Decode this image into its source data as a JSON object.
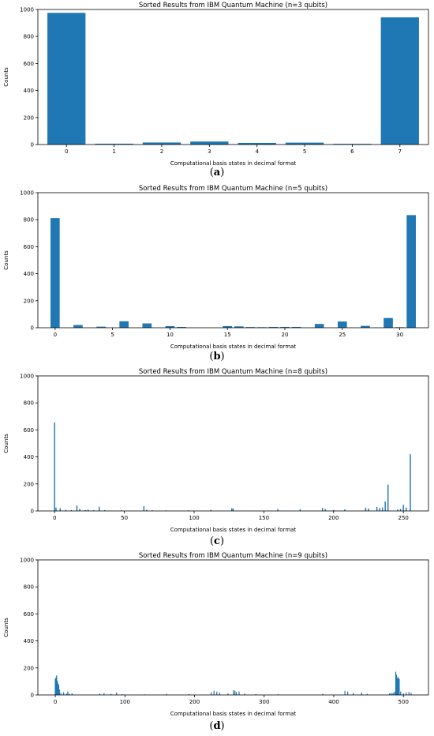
{
  "chart_data": [
    {
      "type": "bar",
      "title": "Sorted Results from IBM Quantum Machine (n=3 qubits)",
      "xlabel": "Computational basis states in decimal format",
      "ylabel": "Counts",
      "panel_label": "a",
      "color": "#1f77b4",
      "xlim": [
        -0.6,
        7.6
      ],
      "ylim": [
        0,
        1000
      ],
      "bar_width": 0.8,
      "xticks": [
        0,
        1,
        2,
        3,
        4,
        5,
        6,
        7
      ],
      "yticks": [
        0,
        200,
        400,
        600,
        800,
        1000
      ],
      "x": [
        0,
        1,
        2,
        3,
        4,
        5,
        6,
        7
      ],
      "values": [
        975,
        6,
        15,
        22,
        12,
        14,
        5,
        942
      ]
    },
    {
      "type": "bar",
      "title": "Sorted Results from IBM Quantum Machine (n=5 qubits)",
      "xlabel": "Computational basis states in decimal format",
      "ylabel": "Counts",
      "panel_label": "b",
      "color": "#1f77b4",
      "xlim": [
        -1.5,
        32.5
      ],
      "ylim": [
        0,
        1000
      ],
      "bar_width": 0.8,
      "xticks": [
        0,
        5,
        10,
        15,
        20,
        25,
        30
      ],
      "yticks": [
        0,
        200,
        400,
        600,
        800,
        1000
      ],
      "x": [
        0,
        2,
        4,
        6,
        8,
        10,
        11,
        15,
        16,
        17,
        18,
        19,
        20,
        21,
        23,
        25,
        27,
        29,
        30,
        31
      ],
      "values": [
        812,
        20,
        8,
        48,
        32,
        12,
        6,
        12,
        10,
        5,
        4,
        6,
        6,
        6,
        28,
        46,
        14,
        72,
        4,
        834
      ]
    },
    {
      "type": "bar",
      "title": "Sorted Results from IBM Quantum Machine (n=8 qubits)",
      "xlabel": "Computational basis states in decimal format",
      "ylabel": "Counts",
      "panel_label": "c",
      "color": "#1f77b4",
      "xlim": [
        -12,
        268
      ],
      "ylim": [
        0,
        1000
      ],
      "bar_width": 0.8,
      "xticks": [
        0,
        50,
        100,
        150,
        200,
        250
      ],
      "yticks": [
        0,
        200,
        400,
        600,
        800,
        1000
      ],
      "x": [
        0,
        1,
        4,
        8,
        12,
        16,
        18,
        22,
        24,
        28,
        32,
        36,
        48,
        64,
        66,
        70,
        80,
        96,
        112,
        127,
        128,
        160,
        176,
        192,
        194,
        200,
        208,
        223,
        225,
        231,
        233,
        235,
        237,
        239,
        246,
        248,
        250,
        252,
        255
      ],
      "values": [
        655,
        25,
        20,
        8,
        6,
        40,
        15,
        6,
        10,
        5,
        30,
        6,
        4,
        35,
        8,
        5,
        4,
        5,
        8,
        20,
        18,
        14,
        12,
        22,
        14,
        6,
        12,
        24,
        18,
        30,
        22,
        25,
        70,
        195,
        12,
        14,
        45,
        25,
        420
      ]
    },
    {
      "type": "bar",
      "title": "Sorted Results from IBM Quantum Machine (n=9 qubits)",
      "xlabel": "Computational basis states in decimal format",
      "ylabel": "Counts",
      "panel_label": "d",
      "color": "#1f77b4",
      "xlim": [
        -25,
        536
      ],
      "ylim": [
        0,
        1000
      ],
      "bar_width": 0.8,
      "xticks": [
        0,
        100,
        200,
        300,
        400,
        500
      ],
      "yticks": [
        0,
        200,
        400,
        600,
        800,
        1000
      ],
      "x": [
        0,
        1,
        2,
        3,
        4,
        5,
        6,
        8,
        12,
        16,
        18,
        20,
        24,
        64,
        70,
        80,
        88,
        96,
        128,
        160,
        192,
        224,
        228,
        232,
        236,
        248,
        256,
        258,
        260,
        264,
        272,
        288,
        320,
        384,
        416,
        420,
        428,
        440,
        448,
        480,
        482,
        484,
        486,
        488,
        489,
        490,
        491,
        492,
        493,
        494,
        496,
        500,
        504,
        508,
        511
      ],
      "values": [
        120,
        130,
        145,
        105,
        85,
        75,
        40,
        15,
        20,
        10,
        25,
        8,
        12,
        10,
        14,
        8,
        18,
        6,
        4,
        8,
        6,
        20,
        30,
        25,
        18,
        12,
        35,
        30,
        22,
        25,
        10,
        6,
        5,
        8,
        30,
        25,
        14,
        18,
        8,
        10,
        14,
        12,
        18,
        25,
        172,
        150,
        120,
        135,
        125,
        118,
        25,
        12,
        18,
        22,
        15
      ]
    }
  ]
}
